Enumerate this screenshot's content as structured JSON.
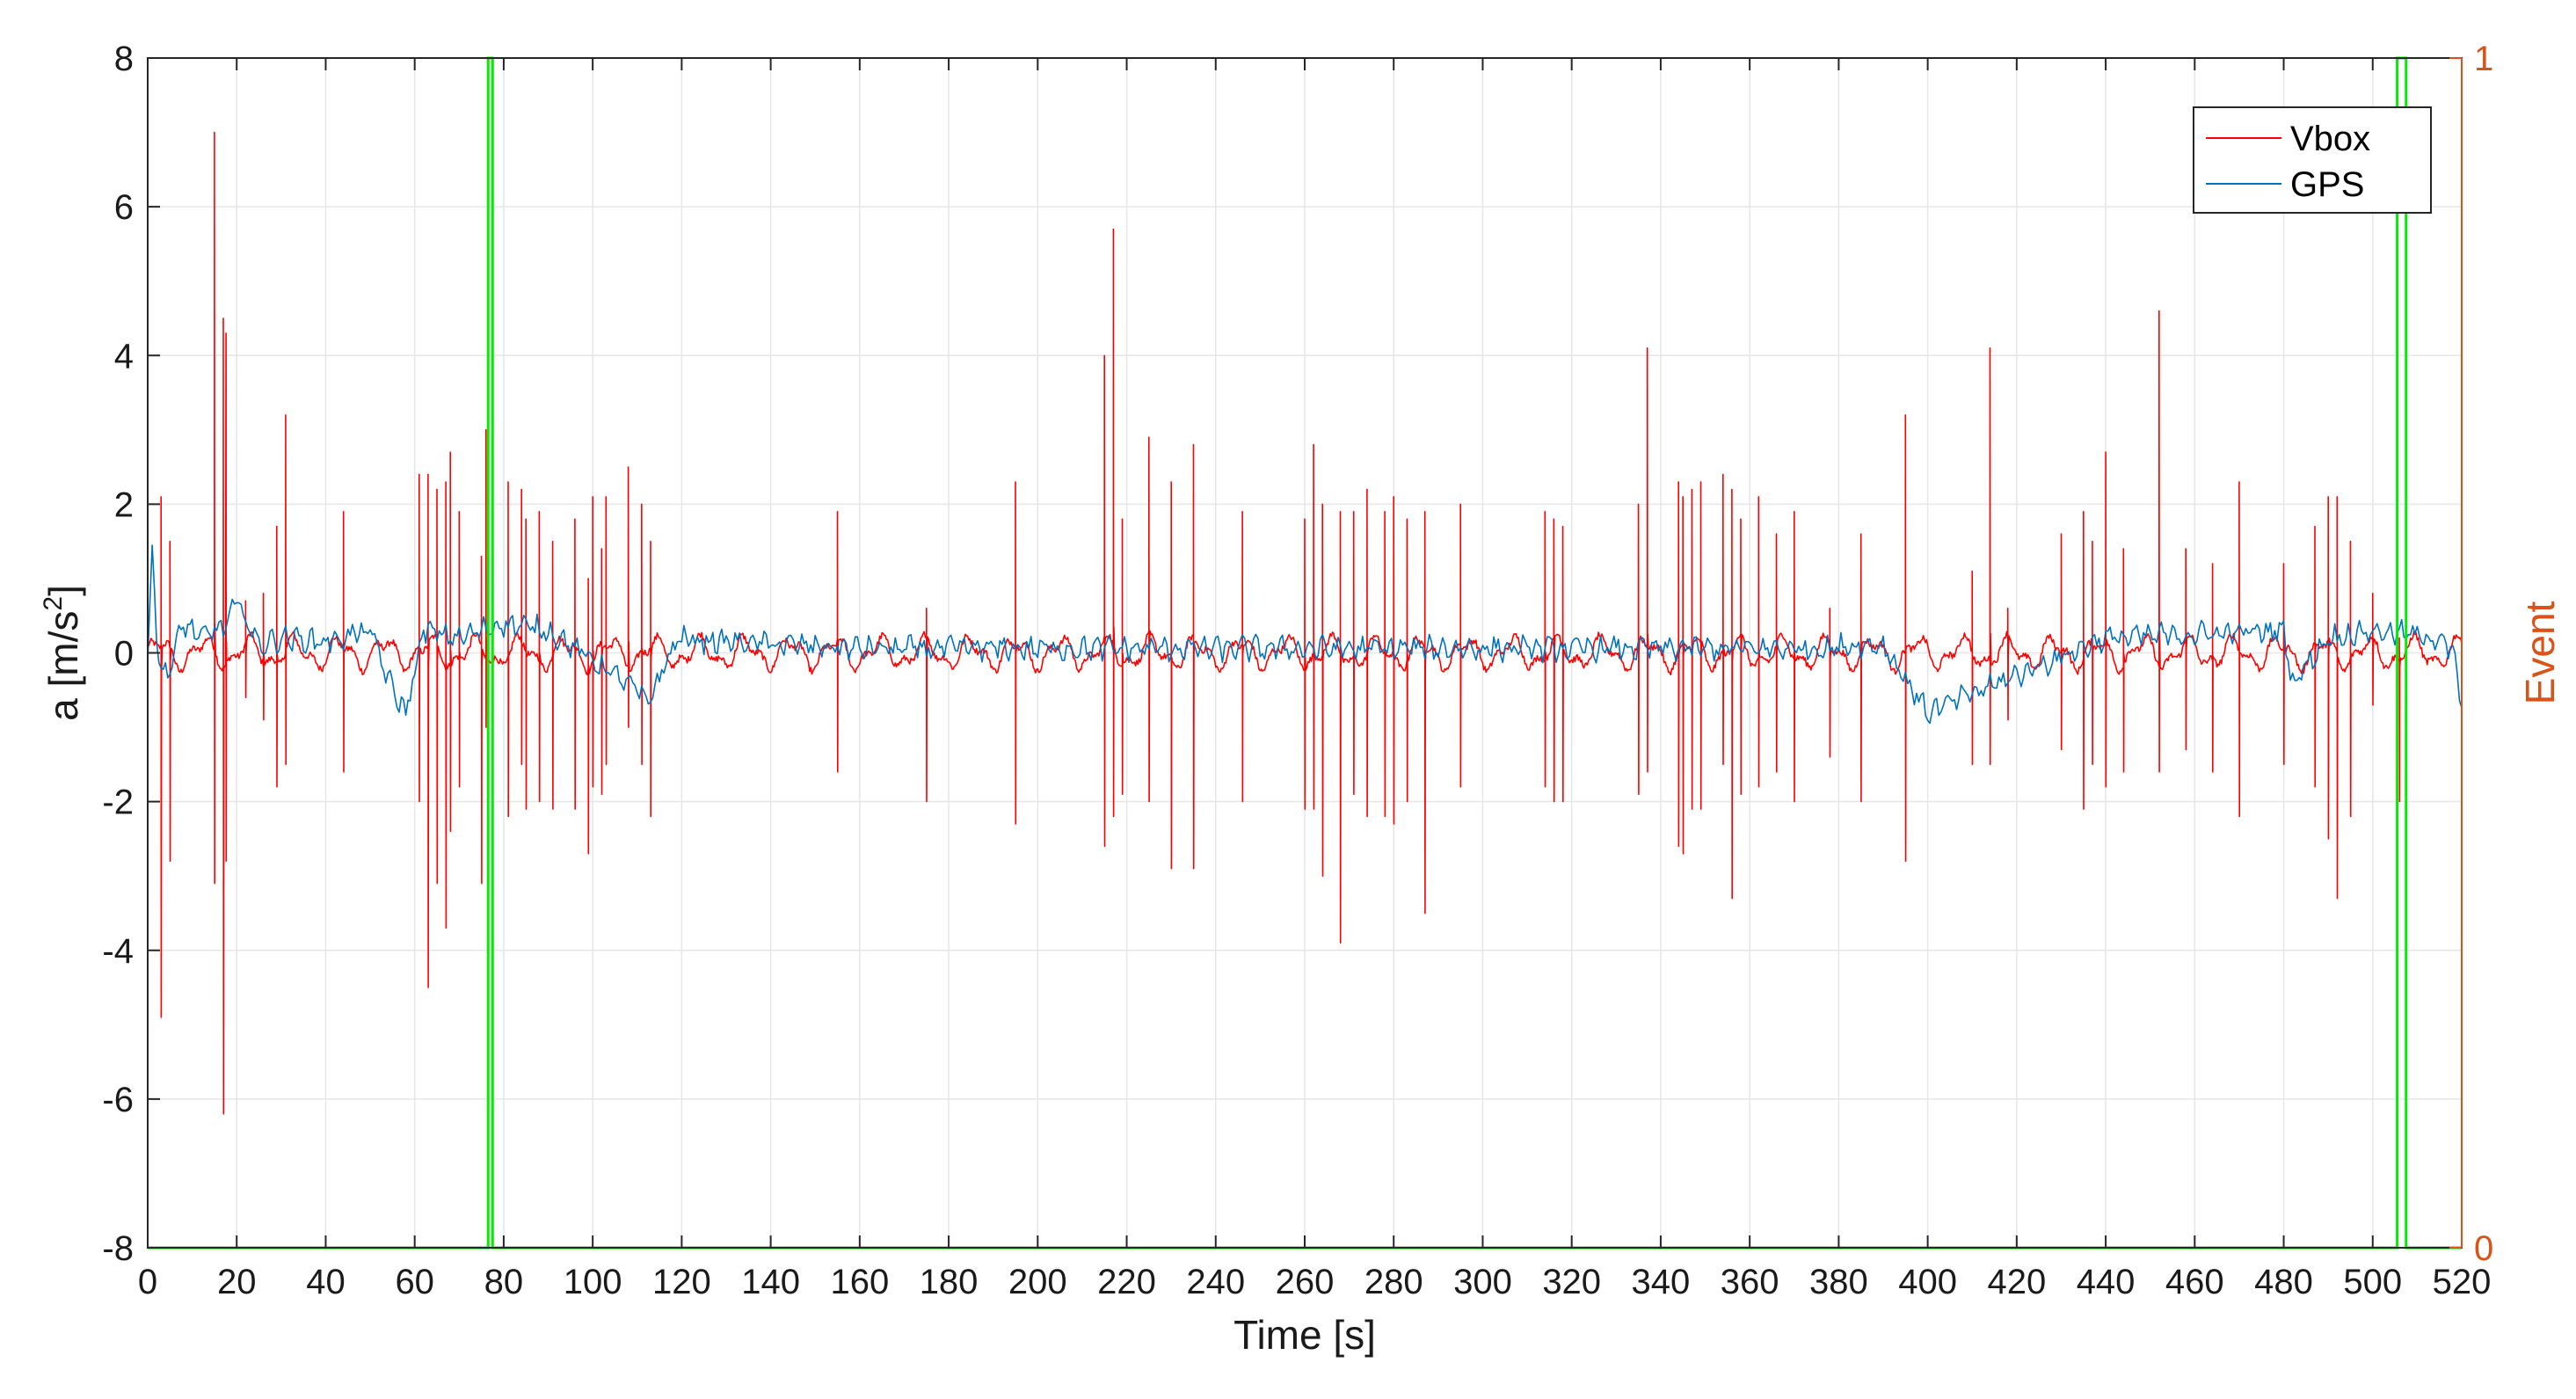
{
  "chart_data": {
    "type": "line",
    "title": "",
    "xlabel": "Time [s]",
    "ylabel": "a [m/s",
    "ylabel_sup": "2",
    "ylabel_end": "]",
    "y2label": "Event",
    "xlim": [
      0,
      520
    ],
    "ylim": [
      -8,
      8
    ],
    "y2lim": [
      0,
      1
    ],
    "x_ticks": [
      0,
      20,
      40,
      60,
      80,
      100,
      120,
      140,
      160,
      180,
      200,
      220,
      240,
      260,
      280,
      300,
      320,
      340,
      360,
      380,
      400,
      420,
      440,
      460,
      480,
      500,
      520
    ],
    "y_ticks": [
      8,
      6,
      4,
      2,
      0,
      -2,
      -4,
      -6,
      -8
    ],
    "y2_ticks": [
      1,
      0
    ],
    "grid": true,
    "legend_position": "top-right",
    "colors": {
      "vbox": "#ff0000",
      "gps": "#0072bd",
      "event": "#00ee00",
      "y2_axis": "#d95319",
      "grid": "#e6e6e6",
      "axes": "#262626"
    },
    "series": [
      {
        "name": "Vbox",
        "color": "#ff0000",
        "noise_amplitude": 0.3,
        "spikes": [
          [
            3,
            2.1,
            -4.9
          ],
          [
            5,
            1.5,
            -2.8
          ],
          [
            15,
            7.0,
            -3.1
          ],
          [
            17,
            4.5,
            -6.2
          ],
          [
            17.6,
            4.3,
            -2.8
          ],
          [
            22,
            0.7,
            -0.6
          ],
          [
            26,
            0.8,
            -0.9
          ],
          [
            29,
            1.7,
            -1.8
          ],
          [
            31,
            3.2,
            -1.5
          ],
          [
            44,
            1.9,
            -1.6
          ],
          [
            61,
            2.4,
            -2.0
          ],
          [
            63,
            2.4,
            -4.5
          ],
          [
            65,
            2.2,
            -3.1
          ],
          [
            67,
            2.3,
            -3.7
          ],
          [
            68,
            2.7,
            -2.4
          ],
          [
            70,
            1.9,
            -1.8
          ],
          [
            75,
            1.3,
            -3.1
          ],
          [
            76,
            3.0,
            -1.0
          ],
          [
            81,
            2.3,
            -2.2
          ],
          [
            84,
            2.2,
            -1.5
          ],
          [
            85,
            1.8,
            -2.1
          ],
          [
            88,
            1.9,
            -2.0
          ],
          [
            91,
            1.5,
            -2.1
          ],
          [
            96,
            1.8,
            -2.1
          ],
          [
            99,
            1.0,
            -2.7
          ],
          [
            100,
            2.1,
            -1.8
          ],
          [
            102,
            1.4,
            -1.9
          ],
          [
            103,
            2.1,
            -1.5
          ],
          [
            108,
            2.5,
            -1.0
          ],
          [
            111,
            2.0,
            -1.5
          ],
          [
            113,
            1.5,
            -2.2
          ],
          [
            155,
            1.9,
            -1.6
          ],
          [
            175,
            0.6,
            -2.0
          ],
          [
            195,
            2.3,
            -2.3
          ],
          [
            215,
            4.0,
            -2.6
          ],
          [
            217,
            5.7,
            -2.2
          ],
          [
            219,
            1.8,
            -1.9
          ],
          [
            225,
            2.9,
            -2.0
          ],
          [
            230,
            2.3,
            -2.9
          ],
          [
            235,
            2.8,
            -2.9
          ],
          [
            246,
            1.9,
            -2.0
          ],
          [
            260,
            1.8,
            -2.1
          ],
          [
            262,
            2.8,
            -2.1
          ],
          [
            264,
            2.0,
            -3.0
          ],
          [
            268,
            1.9,
            -3.9
          ],
          [
            271,
            1.9,
            -1.9
          ],
          [
            274,
            2.2,
            -2.2
          ],
          [
            278,
            1.9,
            -2.2
          ],
          [
            280,
            2.1,
            -2.3
          ],
          [
            283,
            1.8,
            -2.0
          ],
          [
            287,
            1.9,
            -3.5
          ],
          [
            295,
            2.0,
            -1.8
          ],
          [
            314,
            1.9,
            -1.8
          ],
          [
            316,
            1.8,
            -2.0
          ],
          [
            318,
            1.7,
            -2.0
          ],
          [
            335,
            2.0,
            -1.9
          ],
          [
            337,
            4.1,
            -1.6
          ],
          [
            344,
            2.3,
            -2.6
          ],
          [
            345,
            2.1,
            -2.7
          ],
          [
            347,
            2.2,
            -2.1
          ],
          [
            349,
            2.3,
            -2.1
          ],
          [
            354,
            2.4,
            -1.5
          ],
          [
            356,
            2.2,
            -3.3
          ],
          [
            358,
            1.8,
            -1.9
          ],
          [
            362,
            2.1,
            -1.8
          ],
          [
            366,
            1.6,
            -1.6
          ],
          [
            370,
            1.9,
            -2.0
          ],
          [
            378,
            0.6,
            -1.4
          ],
          [
            385,
            1.6,
            -2.0
          ],
          [
            395,
            3.2,
            -2.8
          ],
          [
            410,
            1.1,
            -1.5
          ],
          [
            414,
            4.1,
            -1.5
          ],
          [
            418,
            0.6,
            -0.9
          ],
          [
            430,
            1.6,
            -1.3
          ],
          [
            435,
            1.9,
            -2.1
          ],
          [
            437,
            1.5,
            -1.5
          ],
          [
            440,
            2.7,
            -1.8
          ],
          [
            444,
            1.4,
            -1.6
          ],
          [
            452,
            4.6,
            -1.6
          ],
          [
            458,
            1.4,
            -1.3
          ],
          [
            464,
            1.2,
            -1.6
          ],
          [
            470,
            2.3,
            -2.2
          ],
          [
            480,
            1.2,
            -1.5
          ],
          [
            487,
            1.7,
            -1.8
          ],
          [
            490,
            2.1,
            -2.5
          ],
          [
            492,
            2.1,
            -3.3
          ],
          [
            495,
            1.5,
            -2.2
          ],
          [
            500,
            0.8,
            -0.7
          ],
          [
            506,
            0.2,
            -2.0
          ]
        ]
      },
      {
        "name": "GPS",
        "color": "#0072bd",
        "noise_amplitude": 0.18,
        "points": [
          [
            0,
            0.0
          ],
          [
            1,
            1.4
          ],
          [
            2,
            0.3
          ],
          [
            3,
            -0.3
          ],
          [
            5,
            -0.2
          ],
          [
            8,
            0.4
          ],
          [
            12,
            0.2
          ],
          [
            18,
            0.4
          ],
          [
            20,
            0.7
          ],
          [
            25,
            0.1
          ],
          [
            30,
            0.2
          ],
          [
            40,
            0.15
          ],
          [
            50,
            0.3
          ],
          [
            55,
            -0.5
          ],
          [
            58,
            -0.8
          ],
          [
            62,
            0.3
          ],
          [
            70,
            0.2
          ],
          [
            80,
            0.4
          ],
          [
            90,
            0.3
          ],
          [
            110,
            -0.5
          ],
          [
            112,
            -0.7
          ],
          [
            120,
            0.3
          ],
          [
            160,
            0.1
          ],
          [
            240,
            0.1
          ],
          [
            280,
            0.1
          ],
          [
            320,
            0.1
          ],
          [
            390,
            0.1
          ],
          [
            400,
            -0.8
          ],
          [
            440,
            0.2
          ],
          [
            480,
            0.3
          ],
          [
            482,
            -0.4
          ],
          [
            490,
            0.2
          ],
          [
            500,
            0.3
          ],
          [
            515,
            0.2
          ],
          [
            518,
            0.0
          ],
          [
            520,
            -0.7
          ]
        ]
      },
      {
        "name": "",
        "color": "#00ee00",
        "axis": "right",
        "pulses": [
          [
            76.5,
            77.5
          ],
          [
            505.5,
            507.5
          ]
        ]
      }
    ]
  },
  "legend": {
    "vbox": "Vbox",
    "gps": "GPS"
  }
}
